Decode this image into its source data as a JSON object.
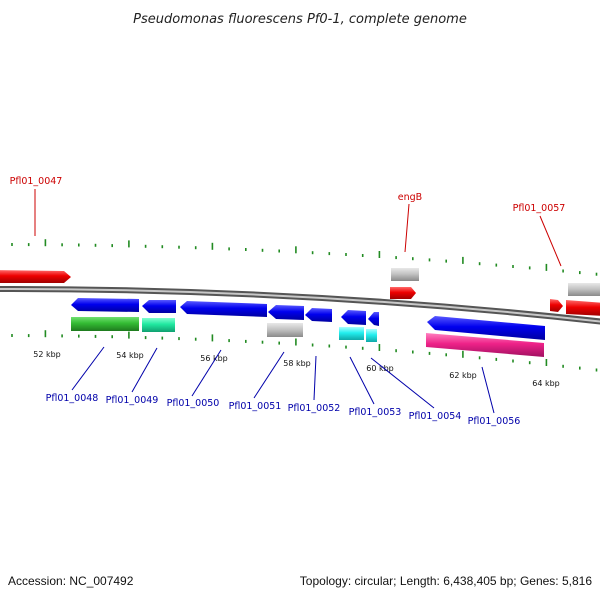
{
  "title": "Pseudomonas fluorescens Pf0-1, complete genome",
  "footer": {
    "accession": "Accession: NC_007492",
    "summary": "Topology: circular; Length: 6,438,405 bp; Genes: 5,816"
  },
  "kbp_labels": [
    "52 kbp",
    "54 kbp",
    "56 kbp",
    "58 kbp",
    "60 kbp",
    "62 kbp",
    "64 kbp"
  ],
  "colors": {
    "forward_label": "#cc0000",
    "reverse_label": "#0000aa",
    "backbone": "#7a7a7a",
    "tick": "#228b22"
  },
  "gene_labels": [
    {
      "text": "Pfl01_0047",
      "strand": "forward"
    },
    {
      "text": "engB",
      "strand": "forward"
    },
    {
      "text": "Pfl01_0057",
      "strand": "forward"
    },
    {
      "text": "Pfl01_0048",
      "strand": "reverse"
    },
    {
      "text": "Pfl01_0049",
      "strand": "reverse"
    },
    {
      "text": "Pfl01_0050",
      "strand": "reverse"
    },
    {
      "text": "Pfl01_0051",
      "strand": "reverse"
    },
    {
      "text": "Pfl01_0052",
      "strand": "reverse"
    },
    {
      "text": "Pfl01_0053",
      "strand": "reverse"
    },
    {
      "text": "Pfl01_0054",
      "strand": "reverse"
    },
    {
      "text": "Pfl01_0056",
      "strand": "reverse"
    }
  ]
}
